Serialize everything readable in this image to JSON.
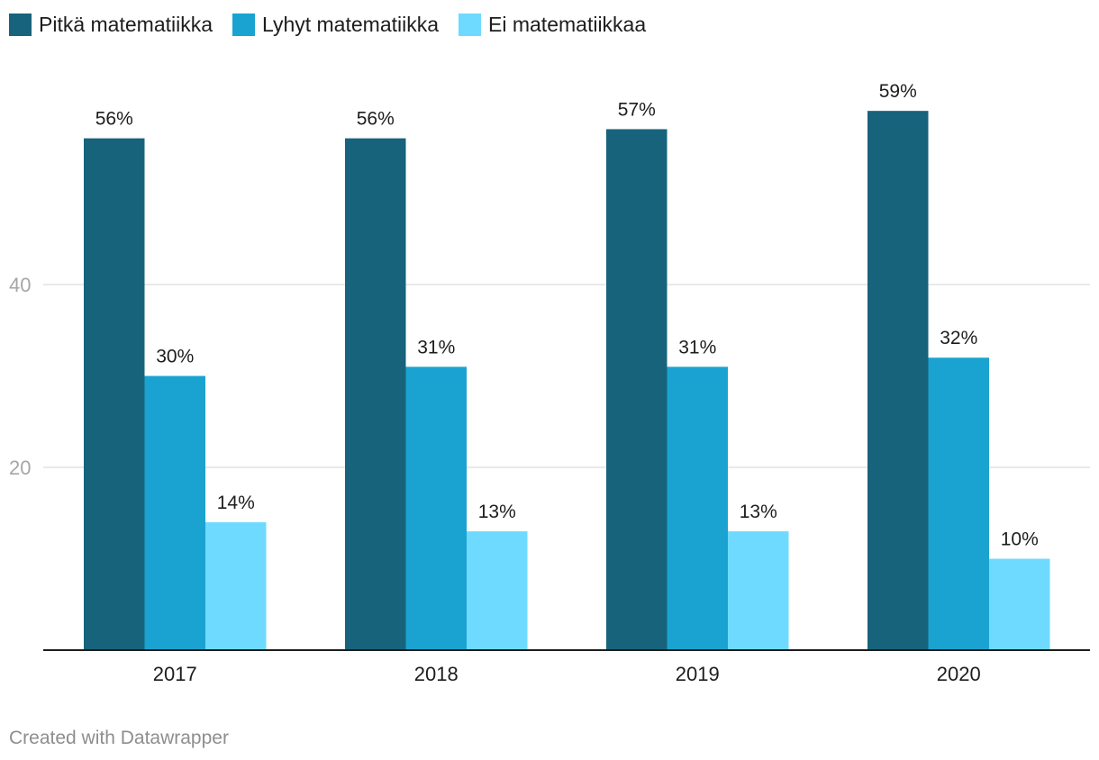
{
  "chart_data": {
    "type": "bar",
    "categories": [
      "2017",
      "2018",
      "2019",
      "2020"
    ],
    "series": [
      {
        "name": "Pitkä matematiikka",
        "values": [
          56,
          56,
          57,
          59
        ],
        "labels": [
          "56%",
          "56%",
          "57%",
          "59%"
        ],
        "color": "#17637c"
      },
      {
        "name": "Lyhyt matematiikka",
        "values": [
          30,
          31,
          31,
          32
        ],
        "labels": [
          "30%",
          "31%",
          "31%",
          "32%"
        ],
        "color": "#1aa3d1"
      },
      {
        "name": "Ei matematiikkaa",
        "values": [
          14,
          13,
          13,
          10
        ],
        "labels": [
          "14%",
          "13%",
          "13%",
          "10%"
        ],
        "color": "#6fdaff"
      }
    ],
    "yticks": [
      20,
      40
    ],
    "ytick_labels": [
      "20",
      "40"
    ],
    "ylim": [
      0,
      60
    ],
    "grid": true,
    "legend": "top-left"
  },
  "footer": "Created with Datawrapper"
}
